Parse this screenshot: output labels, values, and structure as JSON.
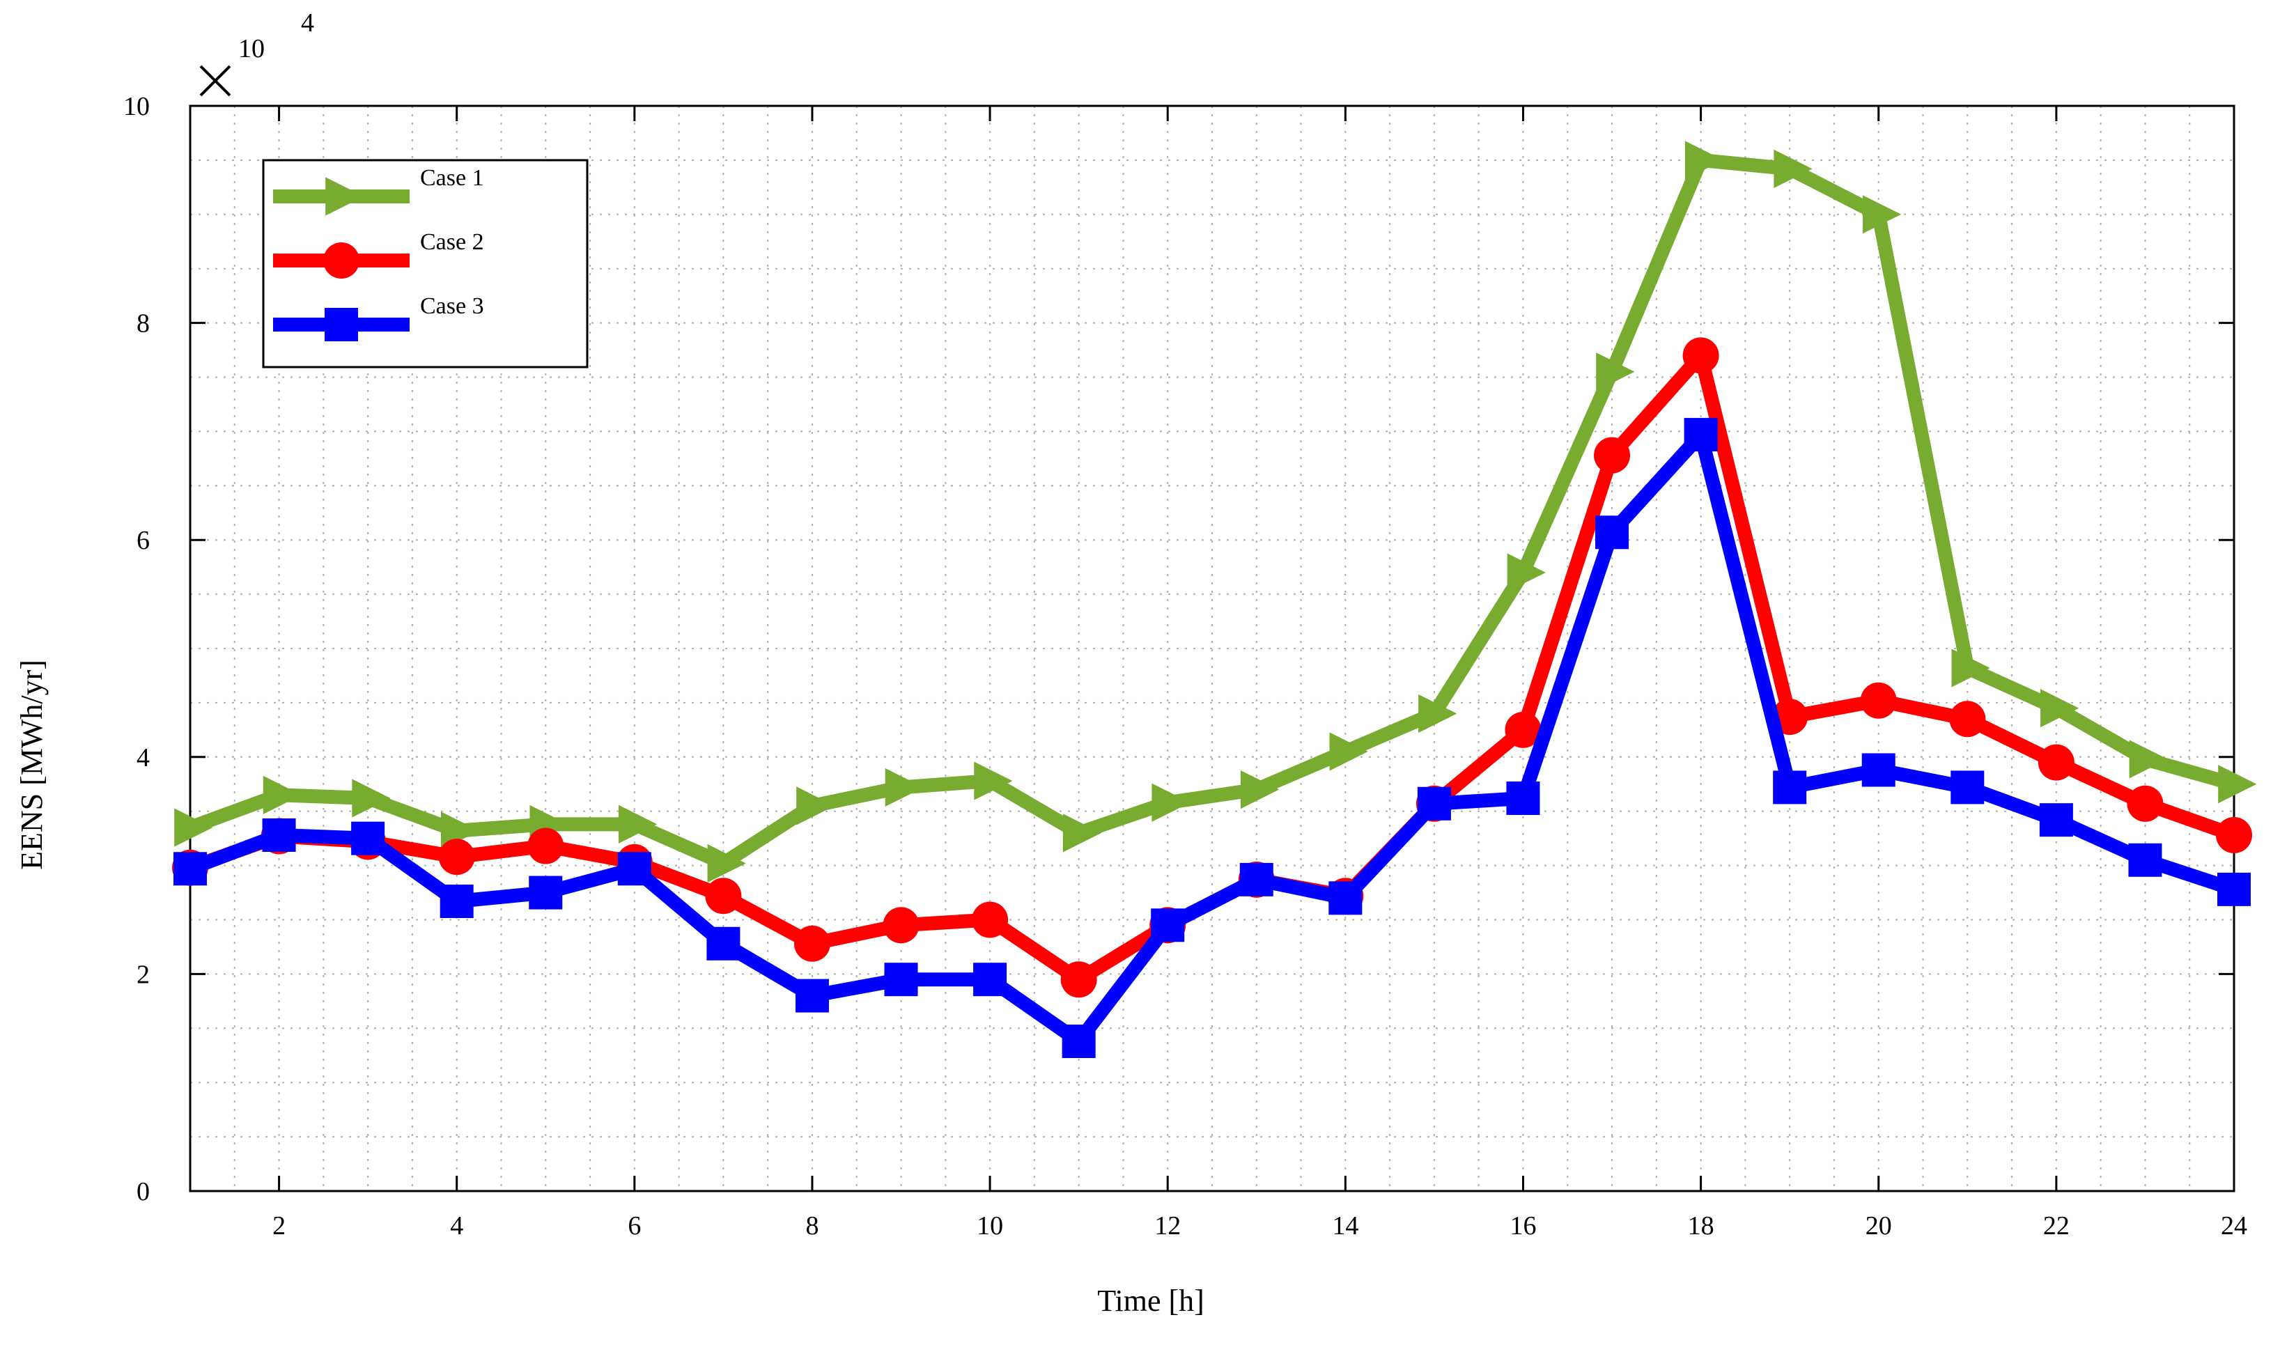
{
  "chart_data": {
    "type": "line",
    "title": "",
    "xlabel": "Time [h]",
    "ylabel": "EENS [MWh/yr]",
    "y_multiplier": {
      "base": "10",
      "exponent": "4"
    },
    "xlim": [
      1,
      24
    ],
    "ylim": [
      0,
      10
    ],
    "x_ticks": [
      2,
      4,
      6,
      8,
      10,
      12,
      14,
      16,
      18,
      20,
      22,
      24
    ],
    "y_ticks": [
      0,
      2,
      4,
      6,
      8,
      10
    ],
    "grid": true,
    "legend_position": "top-left",
    "x": [
      1,
      2,
      3,
      4,
      5,
      6,
      7,
      8,
      9,
      10,
      11,
      12,
      13,
      14,
      15,
      16,
      17,
      18,
      19,
      20,
      21,
      22,
      23,
      24
    ],
    "series": [
      {
        "name": "Case 1",
        "color": "#77ac30",
        "marker": "triangle-right",
        "values": [
          3.35,
          3.65,
          3.62,
          3.32,
          3.38,
          3.38,
          3.02,
          3.55,
          3.72,
          3.78,
          3.3,
          3.58,
          3.7,
          4.05,
          4.4,
          5.7,
          7.55,
          9.5,
          9.42,
          9.0,
          4.82,
          4.45,
          3.98,
          3.75
        ]
      },
      {
        "name": "Case 2",
        "color": "#ff0000",
        "marker": "circle",
        "values": [
          2.98,
          3.27,
          3.22,
          3.08,
          3.18,
          3.03,
          2.72,
          2.28,
          2.45,
          2.5,
          1.95,
          2.45,
          2.87,
          2.72,
          3.57,
          4.25,
          6.78,
          7.7,
          4.37,
          4.52,
          4.35,
          3.95,
          3.57,
          3.28
        ]
      },
      {
        "name": "Case 3",
        "color": "#0000ff",
        "marker": "square",
        "values": [
          2.97,
          3.28,
          3.25,
          2.67,
          2.75,
          2.97,
          2.28,
          1.8,
          1.95,
          1.95,
          1.38,
          2.45,
          2.87,
          2.7,
          3.57,
          3.62,
          6.07,
          6.97,
          3.72,
          3.88,
          3.72,
          3.42,
          3.05,
          2.78
        ]
      }
    ]
  }
}
